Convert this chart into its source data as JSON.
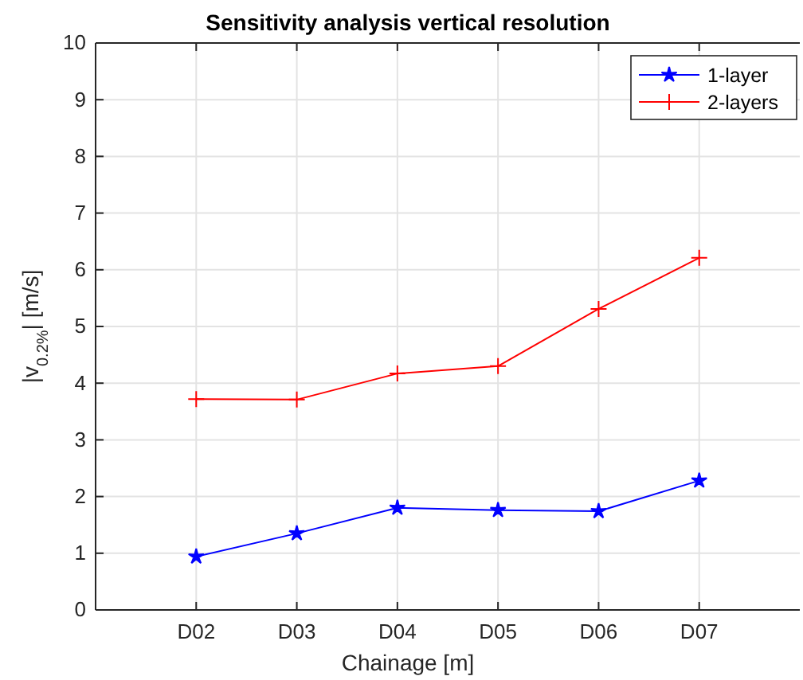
{
  "chart_data": {
    "type": "line",
    "title": "Sensitivity analysis vertical resolution",
    "xlabel": "Chainage [m]",
    "ylabel": "|v$_{0.2%}$| [m/s]",
    "categories": [
      null,
      "D02",
      "D03",
      "D04",
      "D05",
      "D06",
      "D07",
      null
    ],
    "ylim": [
      0,
      10
    ],
    "yticks": [
      0,
      1,
      2,
      3,
      4,
      5,
      6,
      7,
      8,
      9,
      10
    ],
    "grid": true,
    "legend": "top right",
    "line_style": "solid",
    "series": [
      {
        "name": "1-layer",
        "color": "#0000ff",
        "marker": "star",
        "values": [
          null,
          0.94,
          1.35,
          1.8,
          1.76,
          1.74,
          2.28,
          null
        ]
      },
      {
        "name": "2-layers",
        "color": "#ff0000",
        "marker": "cross",
        "values": [
          null,
          3.72,
          3.71,
          4.17,
          4.3,
          5.31,
          6.21,
          null
        ]
      }
    ]
  }
}
